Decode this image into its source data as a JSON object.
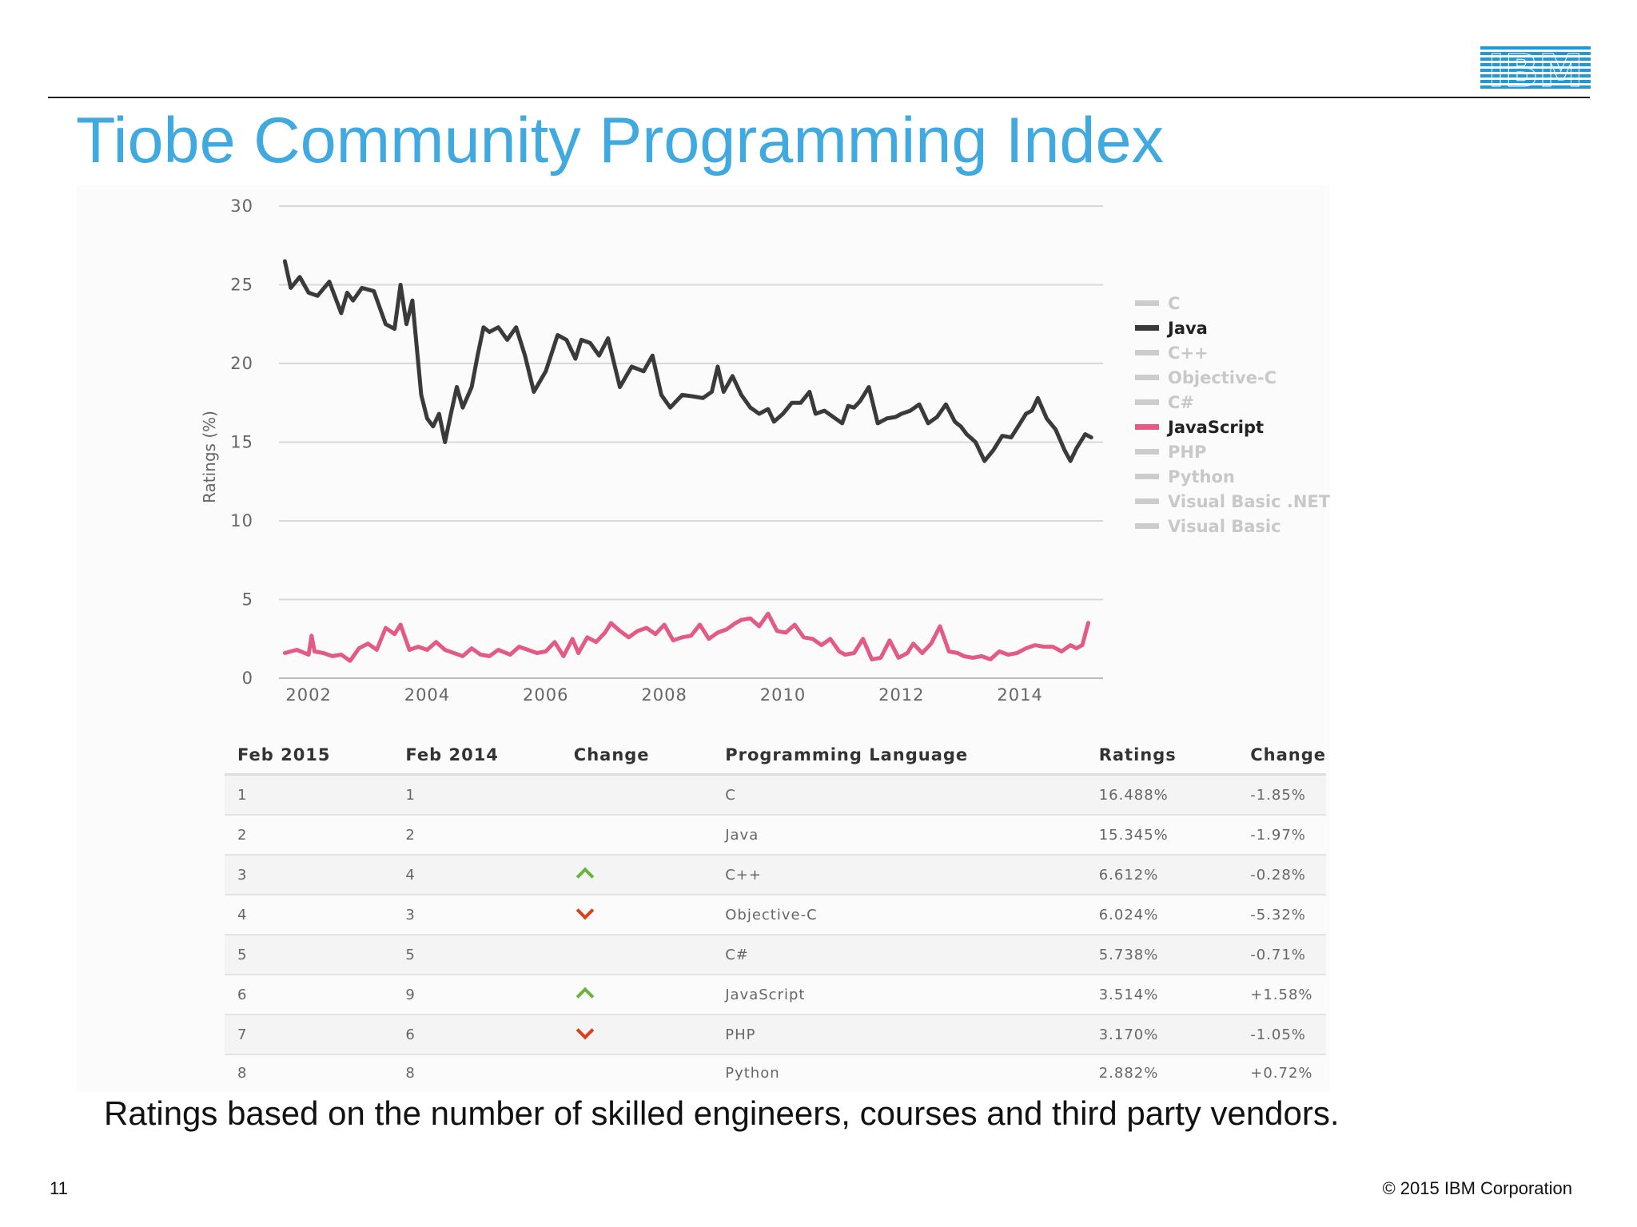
{
  "slide": {
    "title": "Tiobe Community Programming Index",
    "footnote": "Ratings based on the number of skilled engineers, courses and third party vendors.",
    "page_number": "11",
    "copyright": "© 2015 IBM Corporation",
    "logo_text": "IBM",
    "logo_color": "#1f9ad6",
    "title_color": "#3fa9e0"
  },
  "chart_data": {
    "type": "line",
    "title": "",
    "xlabel": "",
    "ylabel": "Ratings (%)",
    "ylim": [
      0,
      30
    ],
    "xlim": [
      2001.5,
      2015.4
    ],
    "yticks": [
      0,
      5,
      10,
      15,
      20,
      25,
      30
    ],
    "xticks": [
      2002,
      2004,
      2006,
      2008,
      2010,
      2012,
      2014
    ],
    "grid": "horizontal",
    "legend_position": "right",
    "legend": [
      {
        "name": "C",
        "color": "#cccccc",
        "active": false
      },
      {
        "name": "Java",
        "color": "#3a3a3a",
        "active": true
      },
      {
        "name": "C++",
        "color": "#cccccc",
        "active": false
      },
      {
        "name": "Objective-C",
        "color": "#cccccc",
        "active": false
      },
      {
        "name": "C#",
        "color": "#cccccc",
        "active": false
      },
      {
        "name": "JavaScript",
        "color": "#e35a85",
        "active": true
      },
      {
        "name": "PHP",
        "color": "#cccccc",
        "active": false
      },
      {
        "name": "Python",
        "color": "#cccccc",
        "active": false
      },
      {
        "name": "Visual Basic .NET",
        "color": "#cccccc",
        "active": false
      },
      {
        "name": "Visual Basic",
        "color": "#cccccc",
        "active": false
      }
    ],
    "series": [
      {
        "name": "Java",
        "color": "#3a3a3a",
        "x": [
          2001.6,
          2001.7,
          2001.85,
          2002.0,
          2002.15,
          2002.35,
          2002.55,
          2002.65,
          2002.75,
          2002.9,
          2003.1,
          2003.3,
          2003.45,
          2003.55,
          2003.65,
          2003.75,
          2003.9,
          2004.0,
          2004.1,
          2004.2,
          2004.3,
          2004.4,
          2004.5,
          2004.6,
          2004.75,
          2004.85,
          2004.95,
          2005.05,
          2005.2,
          2005.35,
          2005.5,
          2005.65,
          2005.8,
          2006.0,
          2006.2,
          2006.35,
          2006.5,
          2006.6,
          2006.75,
          2006.9,
          2007.05,
          2007.25,
          2007.45,
          2007.65,
          2007.8,
          2007.95,
          2008.1,
          2008.3,
          2008.5,
          2008.65,
          2008.8,
          2008.9,
          2009.0,
          2009.15,
          2009.3,
          2009.45,
          2009.6,
          2009.75,
          2009.85,
          2010.0,
          2010.15,
          2010.3,
          2010.45,
          2010.55,
          2010.7,
          2010.85,
          2011.0,
          2011.1,
          2011.2,
          2011.3,
          2011.45,
          2011.6,
          2011.75,
          2011.9,
          2012.0,
          2012.15,
          2012.3,
          2012.45,
          2012.6,
          2012.75,
          2012.9,
          2013.0,
          2013.1,
          2013.25,
          2013.4,
          2013.55,
          2013.7,
          2013.85,
          2014.0,
          2014.1,
          2014.2,
          2014.3,
          2014.45,
          2014.6,
          2014.75,
          2014.85,
          2014.95,
          2015.1,
          2015.2
        ],
        "y": [
          26.5,
          24.8,
          25.5,
          24.5,
          24.3,
          25.2,
          23.2,
          24.5,
          24.0,
          24.8,
          24.6,
          22.5,
          22.2,
          25.0,
          22.5,
          24.0,
          18.0,
          16.5,
          16.0,
          16.8,
          15.0,
          16.8,
          18.5,
          17.2,
          18.5,
          20.5,
          22.3,
          22.0,
          22.3,
          21.5,
          22.3,
          20.5,
          18.2,
          19.5,
          21.8,
          21.5,
          20.3,
          21.5,
          21.3,
          20.5,
          21.6,
          18.5,
          19.8,
          19.5,
          20.5,
          18.0,
          17.2,
          18.0,
          17.9,
          17.8,
          18.2,
          19.8,
          18.2,
          19.2,
          18.0,
          17.2,
          16.8,
          17.1,
          16.3,
          16.8,
          17.5,
          17.5,
          18.2,
          16.8,
          17.0,
          16.6,
          16.2,
          17.3,
          17.2,
          17.6,
          18.5,
          16.2,
          16.5,
          16.6,
          16.8,
          17.0,
          17.4,
          16.2,
          16.6,
          17.4,
          16.3,
          16.0,
          15.5,
          15.0,
          13.8,
          14.5,
          15.4,
          15.3,
          16.2,
          16.8,
          17.0,
          17.8,
          16.5,
          15.8,
          14.5,
          13.8,
          14.6,
          15.5,
          15.3
        ]
      },
      {
        "name": "JavaScript",
        "color": "#e35a85",
        "x": [
          2001.6,
          2001.8,
          2002.0,
          2002.05,
          2002.1,
          2002.25,
          2002.4,
          2002.55,
          2002.7,
          2002.85,
          2003.0,
          2003.15,
          2003.3,
          2003.45,
          2003.55,
          2003.7,
          2003.85,
          2004.0,
          2004.15,
          2004.3,
          2004.45,
          2004.6,
          2004.75,
          2004.9,
          2005.05,
          2005.2,
          2005.4,
          2005.55,
          2005.7,
          2005.85,
          2006.0,
          2006.15,
          2006.3,
          2006.45,
          2006.55,
          2006.7,
          2006.85,
          2007.0,
          2007.1,
          2007.25,
          2007.4,
          2007.55,
          2007.7,
          2007.85,
          2008.0,
          2008.15,
          2008.3,
          2008.45,
          2008.6,
          2008.75,
          2008.9,
          2009.05,
          2009.2,
          2009.3,
          2009.45,
          2009.6,
          2009.75,
          2009.9,
          2010.05,
          2010.2,
          2010.35,
          2010.5,
          2010.65,
          2010.8,
          2010.95,
          2011.05,
          2011.2,
          2011.35,
          2011.5,
          2011.65,
          2011.8,
          2011.95,
          2012.1,
          2012.2,
          2012.35,
          2012.5,
          2012.65,
          2012.8,
          2012.95,
          2013.05,
          2013.2,
          2013.35,
          2013.5,
          2013.65,
          2013.8,
          2013.95,
          2014.1,
          2014.25,
          2014.4,
          2014.55,
          2014.7,
          2014.85,
          2014.95,
          2015.05,
          2015.15
        ],
        "y": [
          1.6,
          1.8,
          1.5,
          2.7,
          1.7,
          1.6,
          1.4,
          1.5,
          1.1,
          1.9,
          2.2,
          1.8,
          3.2,
          2.8,
          3.4,
          1.8,
          2.0,
          1.8,
          2.3,
          1.8,
          1.6,
          1.4,
          1.9,
          1.5,
          1.4,
          1.8,
          1.5,
          2.0,
          1.8,
          1.6,
          1.7,
          2.3,
          1.4,
          2.5,
          1.6,
          2.6,
          2.3,
          2.9,
          3.5,
          3.0,
          2.6,
          3.0,
          3.2,
          2.8,
          3.4,
          2.4,
          2.6,
          2.7,
          3.4,
          2.5,
          2.9,
          3.1,
          3.5,
          3.7,
          3.8,
          3.3,
          4.1,
          3.0,
          2.9,
          3.4,
          2.6,
          2.5,
          2.1,
          2.5,
          1.7,
          1.5,
          1.6,
          2.5,
          1.2,
          1.3,
          2.4,
          1.3,
          1.6,
          2.2,
          1.6,
          2.2,
          3.3,
          1.7,
          1.6,
          1.4,
          1.3,
          1.4,
          1.2,
          1.7,
          1.5,
          1.6,
          1.9,
          2.1,
          2.0,
          2.0,
          1.7,
          2.1,
          1.9,
          2.1,
          3.514
        ]
      }
    ]
  },
  "table": {
    "headers": [
      "Feb 2015",
      "Feb 2014",
      "Change",
      "Programming Language",
      "Ratings",
      "Change"
    ],
    "rows": [
      {
        "rank2015": "1",
        "rank2014": "1",
        "trend": "none",
        "language": "C",
        "rating": "16.488%",
        "change": "-1.85%"
      },
      {
        "rank2015": "2",
        "rank2014": "2",
        "trend": "none",
        "language": "Java",
        "rating": "15.345%",
        "change": "-1.97%"
      },
      {
        "rank2015": "3",
        "rank2014": "4",
        "trend": "up",
        "language": "C++",
        "rating": "6.612%",
        "change": "-0.28%"
      },
      {
        "rank2015": "4",
        "rank2014": "3",
        "trend": "down",
        "language": "Objective-C",
        "rating": "6.024%",
        "change": "-5.32%"
      },
      {
        "rank2015": "5",
        "rank2014": "5",
        "trend": "none",
        "language": "C#",
        "rating": "5.738%",
        "change": "-0.71%"
      },
      {
        "rank2015": "6",
        "rank2014": "9",
        "trend": "up",
        "language": "JavaScript",
        "rating": "3.514%",
        "change": "+1.58%"
      },
      {
        "rank2015": "7",
        "rank2014": "6",
        "trend": "down",
        "language": "PHP",
        "rating": "3.170%",
        "change": "-1.05%"
      },
      {
        "rank2015": "8",
        "rank2014": "8",
        "trend": "none",
        "language": "Python",
        "rating": "2.882%",
        "change": "+0.72%"
      }
    ],
    "trend_icons": {
      "up": "chevron-up-icon",
      "down": "chevron-down-icon"
    },
    "trend_colors": {
      "up": "#6cb33f",
      "down": "#d9411e"
    }
  }
}
